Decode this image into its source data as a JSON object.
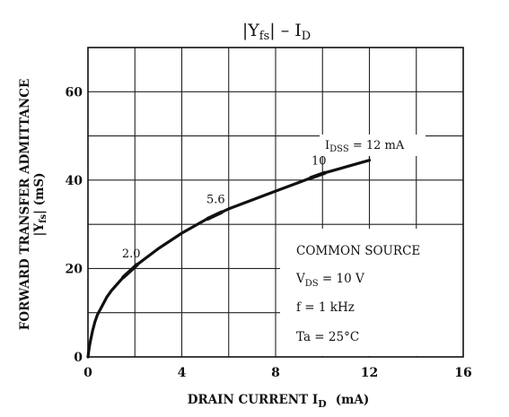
{
  "chart_data": {
    "type": "line",
    "title": {
      "main": "|Y",
      "sub": "fs",
      "tail": "| – I",
      "tail_sub": "D"
    },
    "xlabel": {
      "main": "DRAIN CURRENT  I",
      "sub": "D",
      "unit": "(mA)"
    },
    "ylabel": {
      "line1": "FORWARD TRANSFER ADMITTANCE",
      "line2_main": "|Y",
      "line2_sub": "fs",
      "line2_tail": "|   (mS)"
    },
    "xlim": [
      0,
      16
    ],
    "ylim": [
      0,
      70
    ],
    "x_ticks": [
      0,
      4,
      8,
      12,
      16
    ],
    "y_ticks": [
      0,
      20,
      40,
      60
    ],
    "x_grid_step": 2,
    "y_grid_step": 10,
    "grid": true,
    "series": [
      {
        "points": [
          [
            0,
            0
          ],
          [
            0.05,
            2
          ],
          [
            0.1,
            3.5
          ],
          [
            0.2,
            6
          ],
          [
            0.3,
            8
          ],
          [
            0.4,
            9.5
          ],
          [
            0.5,
            10.5
          ],
          [
            0.6,
            11.5
          ],
          [
            0.8,
            13.5
          ],
          [
            1.0,
            15
          ],
          [
            1.5,
            18
          ],
          [
            2.0,
            20.5
          ],
          [
            3,
            24.5
          ],
          [
            4,
            28
          ],
          [
            5,
            31
          ],
          [
            6,
            33.5
          ],
          [
            7,
            35.5
          ],
          [
            8,
            37.5
          ],
          [
            9,
            39.5
          ],
          [
            10,
            41.5
          ],
          [
            11,
            43
          ],
          [
            12,
            44.5
          ]
        ]
      }
    ],
    "idss_markers": [
      {
        "label": "2.0",
        "x": 2.0,
        "y": 20.5
      },
      {
        "label": "5.6",
        "x": 5.6,
        "y": 32.8
      },
      {
        "label": "10",
        "x": 10,
        "y": 41.5
      }
    ],
    "idss_end_label": {
      "main": "I",
      "sub": "DSS",
      "tail": " = 12 mA"
    },
    "conditions": [
      {
        "main": "COMMON SOURCE"
      },
      {
        "main": "V",
        "sub": "DS",
        "tail": " = 10 V"
      },
      {
        "main": "f = 1 kHz"
      },
      {
        "main": "Ta = 25°C"
      }
    ]
  },
  "colors": {
    "ink": "#111111",
    "background": "#ffffff"
  }
}
